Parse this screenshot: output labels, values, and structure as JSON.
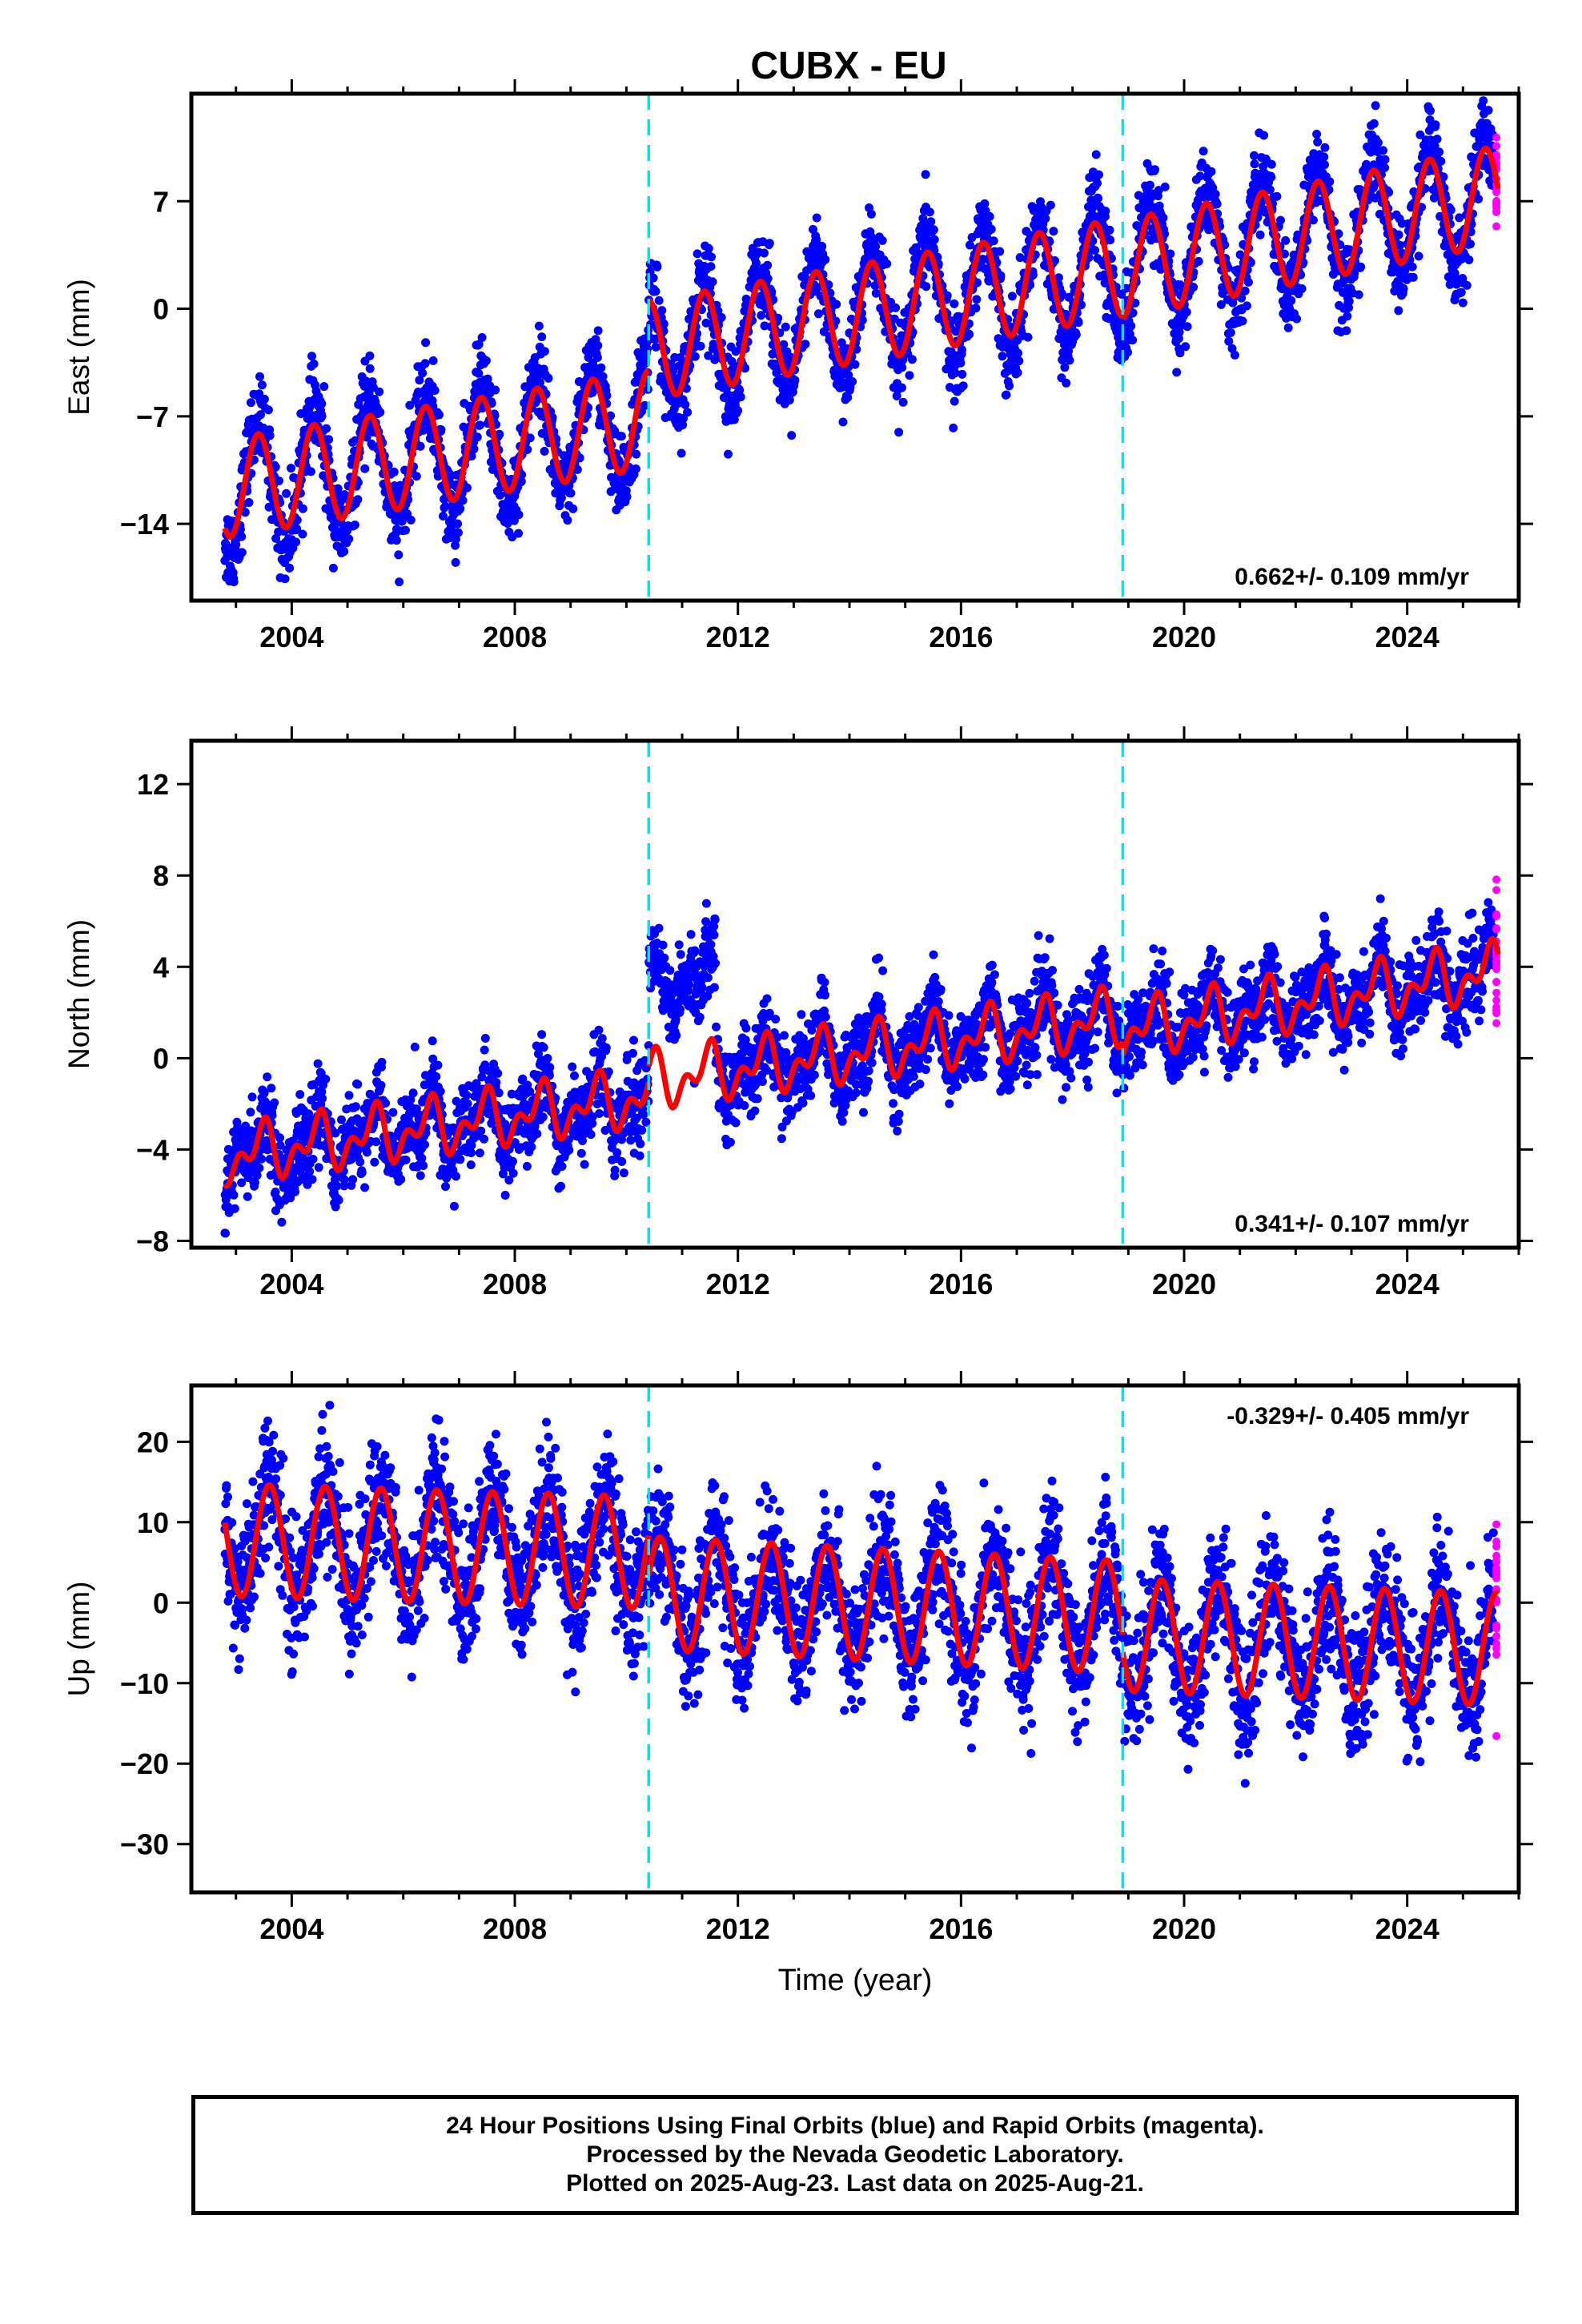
{
  "figure": {
    "title": "CUBX - EU",
    "footer": [
      "24 Hour Positions Using Final Orbits (blue) and Rapid Orbits (magenta).",
      "Processed by the Nevada Geodetic Laboratory.",
      "Plotted on 2025-Aug-23. Last data on 2025-Aug-21."
    ]
  },
  "colors": {
    "final_orbits": "#0000ff",
    "rapid_orbits": "#ff00ff",
    "model_fit": "#ff0000",
    "offsets": "#00e5ee",
    "frame": "#000000"
  },
  "chart_data": [
    {
      "type": "scatter",
      "panel": "east",
      "title": "CUBX - EU",
      "xlabel": "",
      "ylabel": "East (mm)",
      "xlim": [
        2002.2,
        2026.0
      ],
      "ylim": [
        -19,
        14
      ],
      "x_ticks": [
        2004,
        2008,
        2012,
        2016,
        2020,
        2024
      ],
      "y_ticks": [
        -14,
        -7,
        0,
        7
      ],
      "grid": false,
      "rate_text": "0.662+/- 0.109 mm/yr",
      "rate_position": "bottom-right",
      "offset_epochs": [
        2010.4,
        2018.9
      ],
      "data_span": [
        2002.8,
        2025.55
      ],
      "rapid_span": [
        2025.35,
        2025.63
      ],
      "model": {
        "segments": [
          {
            "start": 2002.8,
            "end": 2010.4,
            "value_at_start": -11.7,
            "value_at_end": -7.2
          },
          {
            "start": 2010.4,
            "end": 2018.9,
            "value_at_start": -2.7,
            "value_at_end": 2.7
          },
          {
            "start": 2018.9,
            "end": 2025.63,
            "value_at_start": 2.6,
            "value_at_end": 7.4
          }
        ],
        "annual_amplitude": 3.2,
        "annual_peak": 0.4,
        "semiannual_amplitude": 0.0,
        "semiannual_peak": 0.0
      },
      "scatter_std": 1.4,
      "scatter_annual_amplitude": 4.0
    },
    {
      "type": "scatter",
      "panel": "north",
      "title": "",
      "xlabel": "",
      "ylabel": "North (mm)",
      "xlim": [
        2002.2,
        2026.0
      ],
      "ylim": [
        -8.3,
        13.9
      ],
      "x_ticks": [
        2004,
        2008,
        2012,
        2016,
        2020,
        2024
      ],
      "y_ticks": [
        -8,
        -4,
        0,
        4,
        8,
        12
      ],
      "grid": false,
      "rate_text": "0.341+/- 0.107 mm/yr",
      "rate_position": "bottom-right",
      "offset_epochs": [
        2010.4,
        2018.9
      ],
      "data_span": [
        2002.8,
        2025.55
      ],
      "rapid_span": [
        2025.35,
        2025.63
      ],
      "model": {
        "segments": [
          {
            "start": 2002.8,
            "end": 2010.4,
            "value_at_start": -4.3,
            "value_at_end": -1.7
          },
          {
            "start": 2010.4,
            "end": 2018.9,
            "value_at_start": -1.0,
            "value_at_end": 1.8
          },
          {
            "start": 2018.9,
            "end": 2025.63,
            "value_at_start": 1.2,
            "value_at_end": 3.8
          }
        ],
        "annual_amplitude": 0.9,
        "annual_peak": 0.45,
        "semiannual_amplitude": 0.7,
        "semiannual_peak": 0.05
      },
      "scatter_std": 0.9,
      "scatter_annual_amplitude": 1.0,
      "anomaly": {
        "start": 2010.4,
        "end": 2011.6,
        "shift": 4.2
      }
    },
    {
      "type": "scatter",
      "panel": "up",
      "title": "",
      "xlabel": "Time (year)",
      "ylabel": "Up (mm)",
      "xlim": [
        2002.2,
        2026.0
      ],
      "ylim": [
        -36,
        27
      ],
      "x_ticks": [
        2004,
        2008,
        2012,
        2016,
        2020,
        2024
      ],
      "y_ticks": [
        -30,
        -20,
        -10,
        0,
        10,
        20
      ],
      "grid": false,
      "rate_text": "-0.329+/- 0.405 mm/yr",
      "rate_position": "top-right",
      "offset_epochs": [
        2010.4,
        2018.9
      ],
      "data_span": [
        2002.8,
        2025.55
      ],
      "rapid_span": [
        2025.35,
        2025.63
      ],
      "model": {
        "segments": [
          {
            "start": 2002.8,
            "end": 2010.4,
            "value_at_start": 7.8,
            "value_at_end": 6.2
          },
          {
            "start": 2010.4,
            "end": 2018.9,
            "value_at_start": 1.2,
            "value_at_end": -1.8
          },
          {
            "start": 2018.9,
            "end": 2025.63,
            "value_at_start": -4.0,
            "value_at_end": -5.8
          }
        ],
        "annual_amplitude": 7.0,
        "annual_peak": 0.6,
        "semiannual_amplitude": 0.0,
        "semiannual_peak": 0.0
      },
      "scatter_std": 4.0,
      "scatter_annual_amplitude": 7.0
    }
  ]
}
